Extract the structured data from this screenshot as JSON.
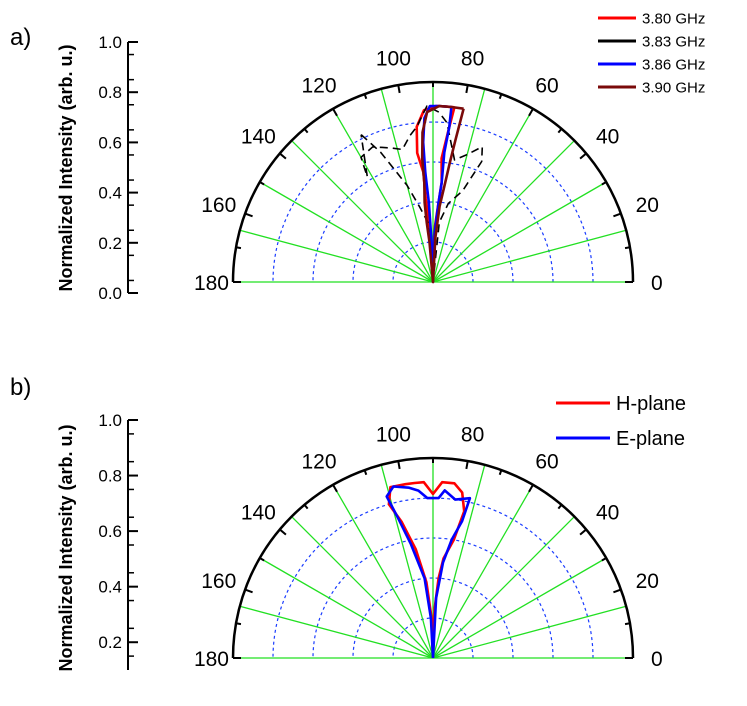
{
  "chart_data": [
    {
      "type": "polar-line",
      "panel_label": "a)",
      "ylabel": "Normalized Intensity (arb. u.)",
      "r_ticks": [
        "0.0",
        "0.2",
        "0.4",
        "0.6",
        "0.8",
        "1.0"
      ],
      "angle_ticks": [
        "0",
        "20",
        "40",
        "60",
        "80",
        "100",
        "120",
        "140",
        "160",
        "180"
      ],
      "angle_range": [
        0,
        180
      ],
      "grid": true,
      "legend_position": "top-right",
      "series": [
        {
          "name": "3.80 GHz",
          "color": "#ff0000",
          "dash": "solid",
          "points": [
            [
              83,
              0.88
            ],
            [
              84,
              0.78
            ],
            [
              86,
              0.62
            ],
            [
              85,
              0.5
            ],
            [
              86,
              0.4
            ],
            [
              88,
              0.28
            ],
            [
              89,
              0.15
            ],
            [
              90,
              0.0
            ],
            [
              92,
              0.15
            ],
            [
              94,
              0.3
            ],
            [
              95,
              0.42
            ],
            [
              95,
              0.55
            ],
            [
              97,
              0.65
            ],
            [
              96,
              0.78
            ],
            [
              93,
              0.86
            ],
            [
              89,
              0.88
            ],
            [
              86,
              0.88
            ],
            [
              83,
              0.88
            ]
          ]
        },
        {
          "name": "3.83 GHz",
          "color": "#000000",
          "dash": "dashed",
          "points": [
            [
              116,
              0.82
            ],
            [
              112,
              0.7
            ],
            [
              105,
              0.5
            ],
            [
              100,
              0.38
            ],
            [
              95,
              0.3
            ],
            [
              90,
              0.0
            ],
            [
              84,
              0.3
            ],
            [
              79,
              0.4
            ],
            [
              72,
              0.48
            ],
            [
              68,
              0.65
            ],
            [
              70,
              0.72
            ],
            [
              75,
              0.66
            ],
            [
              80,
              0.62
            ],
            [
              85,
              0.8
            ],
            [
              88,
              0.85
            ],
            [
              92,
              0.88
            ],
            [
              96,
              0.78
            ],
            [
              99,
              0.74
            ],
            [
              103,
              0.68
            ],
            [
              107,
              0.7
            ],
            [
              114,
              0.74
            ],
            [
              120,
              0.72
            ],
            [
              122,
              0.62
            ],
            [
              116,
              0.82
            ]
          ]
        },
        {
          "name": "3.86 GHz",
          "color": "#0000ff",
          "dash": "solid",
          "points": [
            [
              84,
              0.88
            ],
            [
              84,
              0.78
            ],
            [
              85,
              0.65
            ],
            [
              85,
              0.5
            ],
            [
              86,
              0.4
            ],
            [
              88,
              0.25
            ],
            [
              90,
              0.0
            ],
            [
              92,
              0.2
            ],
            [
              93,
              0.4
            ],
            [
              94,
              0.55
            ],
            [
              94,
              0.7
            ],
            [
              93,
              0.82
            ],
            [
              91,
              0.88
            ],
            [
              88,
              0.88
            ],
            [
              84,
              0.88
            ]
          ]
        },
        {
          "name": "3.90 GHz",
          "color": "#7a0a0a",
          "dash": "solid",
          "points": [
            [
              80,
              0.88
            ],
            [
              81,
              0.72
            ],
            [
              82,
              0.6
            ],
            [
              83,
              0.5
            ],
            [
              85,
              0.38
            ],
            [
              87,
              0.22
            ],
            [
              90,
              0.0
            ],
            [
              95,
              0.2
            ],
            [
              96,
              0.3
            ],
            [
              96,
              0.4
            ],
            [
              95,
              0.5
            ],
            [
              95,
              0.62
            ],
            [
              94,
              0.75
            ],
            [
              92,
              0.85
            ],
            [
              88,
              0.88
            ],
            [
              84,
              0.88
            ],
            [
              80,
              0.88
            ]
          ]
        }
      ]
    },
    {
      "type": "polar-line",
      "panel_label": "b)",
      "ylabel": "Normalized Intensity (arb. u.)",
      "r_ticks": [
        "0.2",
        "0.4",
        "0.6",
        "0.8",
        "1.0"
      ],
      "angle_ticks": [
        "0",
        "20",
        "40",
        "60",
        "80",
        "100",
        "120",
        "140",
        "160",
        "180"
      ],
      "angle_range": [
        0,
        180
      ],
      "grid": true,
      "legend_position": "top-right",
      "series": [
        {
          "name": "H-plane",
          "color": "#ff0000",
          "dash": "solid",
          "points": [
            [
              90,
              0.0
            ],
            [
              92,
              0.2
            ],
            [
              95,
              0.38
            ],
            [
              99,
              0.55
            ],
            [
              103,
              0.7
            ],
            [
              106,
              0.8
            ],
            [
              104,
              0.88
            ],
            [
              99,
              0.88
            ],
            [
              96,
              0.88
            ],
            [
              93,
              0.88
            ],
            [
              90,
              0.82
            ],
            [
              87,
              0.88
            ],
            [
              83,
              0.88
            ],
            [
              80,
              0.84
            ],
            [
              78,
              0.75
            ],
            [
              80,
              0.6
            ],
            [
              84,
              0.5
            ],
            [
              86,
              0.4
            ],
            [
              88,
              0.25
            ],
            [
              90,
              0.0
            ]
          ]
        },
        {
          "name": "E-plane",
          "color": "#0000ff",
          "dash": "solid",
          "points": [
            [
              90,
              0.0
            ],
            [
              93,
              0.2
            ],
            [
              96,
              0.4
            ],
            [
              101,
              0.58
            ],
            [
              104,
              0.72
            ],
            [
              106,
              0.84
            ],
            [
              103,
              0.88
            ],
            [
              98,
              0.86
            ],
            [
              95,
              0.84
            ],
            [
              92,
              0.8
            ],
            [
              88,
              0.8
            ],
            [
              86,
              0.84
            ],
            [
              82,
              0.8
            ],
            [
              77,
              0.82
            ],
            [
              78,
              0.7
            ],
            [
              81,
              0.6
            ],
            [
              84,
              0.48
            ],
            [
              87,
              0.3
            ],
            [
              90,
              0.0
            ]
          ]
        }
      ]
    }
  ]
}
